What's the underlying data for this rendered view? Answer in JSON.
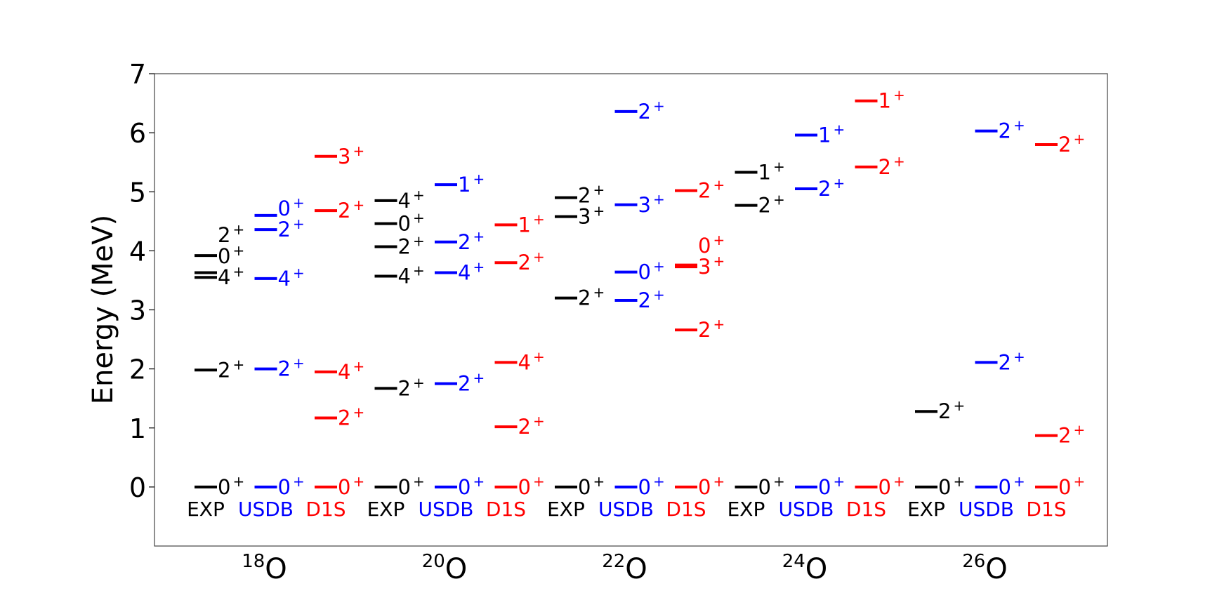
{
  "chart_data": {
    "type": "level-scheme",
    "ylabel": "Energy (MeV)",
    "ylim": [
      -1,
      7
    ],
    "yticks": [
      0,
      1,
      2,
      3,
      4,
      5,
      6,
      7
    ],
    "grid": false,
    "colors": {
      "EXP": "#000000",
      "USDB": "#0000ff",
      "D1S": "#ff0000"
    },
    "nuclei": [
      {
        "mass": "18",
        "symbol": "O",
        "columns": [
          {
            "label": "EXP",
            "levels": [
              {
                "e": 0.0,
                "jp": "0",
                "p": "+"
              },
              {
                "e": 1.98,
                "jp": "2",
                "p": "+"
              },
              {
                "e": 3.55,
                "jp": "4",
                "p": "+"
              },
              {
                "e": 3.63,
                "jp": "0",
                "p": "+"
              },
              {
                "e": 3.92,
                "jp": "2",
                "p": "+"
              }
            ]
          },
          {
            "label": "USDB",
            "levels": [
              {
                "e": 0.0,
                "jp": "0",
                "p": "+"
              },
              {
                "e": 2.0,
                "jp": "2",
                "p": "+"
              },
              {
                "e": 3.53,
                "jp": "4",
                "p": "+"
              },
              {
                "e": 4.36,
                "jp": "2",
                "p": "+"
              },
              {
                "e": 4.6,
                "jp": "0",
                "p": "+"
              }
            ]
          },
          {
            "label": "D1S",
            "levels": [
              {
                "e": 0.0,
                "jp": "0",
                "p": "+"
              },
              {
                "e": 1.17,
                "jp": "2",
                "p": "+"
              },
              {
                "e": 1.95,
                "jp": "4",
                "p": "+"
              },
              {
                "e": 4.68,
                "jp": "2",
                "p": "+"
              },
              {
                "e": 5.6,
                "jp": "3",
                "p": "+"
              }
            ]
          }
        ]
      },
      {
        "mass": "20",
        "symbol": "O",
        "columns": [
          {
            "label": "EXP",
            "levels": [
              {
                "e": 0.0,
                "jp": "0",
                "p": "+"
              },
              {
                "e": 1.67,
                "jp": "2",
                "p": "+"
              },
              {
                "e": 3.57,
                "jp": "4",
                "p": "+"
              },
              {
                "e": 4.07,
                "jp": "2",
                "p": "+"
              },
              {
                "e": 4.46,
                "jp": "0",
                "p": "+"
              },
              {
                "e": 4.85,
                "jp": "4",
                "p": "+"
              }
            ]
          },
          {
            "label": "USDB",
            "levels": [
              {
                "e": 0.0,
                "jp": "0",
                "p": "+"
              },
              {
                "e": 1.75,
                "jp": "2",
                "p": "+"
              },
              {
                "e": 3.63,
                "jp": "4",
                "p": "+"
              },
              {
                "e": 4.15,
                "jp": "2",
                "p": "+"
              },
              {
                "e": 5.12,
                "jp": "1",
                "p": "+"
              }
            ]
          },
          {
            "label": "D1S",
            "levels": [
              {
                "e": 0.0,
                "jp": "0",
                "p": "+"
              },
              {
                "e": 1.02,
                "jp": "2",
                "p": "+"
              },
              {
                "e": 2.11,
                "jp": "4",
                "p": "+"
              },
              {
                "e": 3.8,
                "jp": "2",
                "p": "+"
              },
              {
                "e": 4.44,
                "jp": "1",
                "p": "+"
              }
            ]
          }
        ]
      },
      {
        "mass": "22",
        "symbol": "O",
        "columns": [
          {
            "label": "EXP",
            "levels": [
              {
                "e": 0.0,
                "jp": "0",
                "p": "+"
              },
              {
                "e": 3.2,
                "jp": "2",
                "p": "+"
              },
              {
                "e": 4.58,
                "jp": "3",
                "p": "+"
              },
              {
                "e": 4.9,
                "jp": "2",
                "p": "+"
              }
            ]
          },
          {
            "label": "USDB",
            "levels": [
              {
                "e": 0.0,
                "jp": "0",
                "p": "+"
              },
              {
                "e": 3.16,
                "jp": "2",
                "p": "+"
              },
              {
                "e": 3.64,
                "jp": "0",
                "p": "+"
              },
              {
                "e": 4.78,
                "jp": "3",
                "p": "+"
              },
              {
                "e": 6.36,
                "jp": "2",
                "p": "+"
              }
            ]
          },
          {
            "label": "D1S",
            "levels": [
              {
                "e": 0.0,
                "jp": "0",
                "p": "+"
              },
              {
                "e": 2.66,
                "jp": "2",
                "p": "+"
              },
              {
                "e": 3.73,
                "jp": "3",
                "p": "+"
              },
              {
                "e": 3.76,
                "jp": "0",
                "p": "+"
              },
              {
                "e": 5.02,
                "jp": "2",
                "p": "+"
              }
            ]
          }
        ]
      },
      {
        "mass": "24",
        "symbol": "O",
        "columns": [
          {
            "label": "EXP",
            "levels": [
              {
                "e": 0.0,
                "jp": "0",
                "p": "+"
              },
              {
                "e": 4.77,
                "jp": "2",
                "p": "+"
              },
              {
                "e": 5.33,
                "jp": "1",
                "p": "+"
              }
            ]
          },
          {
            "label": "USDB",
            "levels": [
              {
                "e": 0.0,
                "jp": "0",
                "p": "+"
              },
              {
                "e": 5.05,
                "jp": "2",
                "p": "+"
              },
              {
                "e": 5.96,
                "jp": "1",
                "p": "+"
              }
            ]
          },
          {
            "label": "D1S",
            "levels": [
              {
                "e": 0.0,
                "jp": "0",
                "p": "+"
              },
              {
                "e": 5.42,
                "jp": "2",
                "p": "+"
              },
              {
                "e": 6.54,
                "jp": "1",
                "p": "+"
              }
            ]
          }
        ]
      },
      {
        "mass": "26",
        "symbol": "O",
        "columns": [
          {
            "label": "EXP",
            "levels": [
              {
                "e": 0.0,
                "jp": "0",
                "p": "+"
              },
              {
                "e": 1.28,
                "jp": "2",
                "p": "+"
              }
            ]
          },
          {
            "label": "USDB",
            "levels": [
              {
                "e": 0.0,
                "jp": "0",
                "p": "+"
              },
              {
                "e": 2.11,
                "jp": "2",
                "p": "+"
              },
              {
                "e": 6.03,
                "jp": "2",
                "p": "+"
              }
            ]
          },
          {
            "label": "D1S",
            "levels": [
              {
                "e": 0.0,
                "jp": "0",
                "p": "+"
              },
              {
                "e": 0.87,
                "jp": "2",
                "p": "+"
              },
              {
                "e": 5.8,
                "jp": "2",
                "p": "+"
              }
            ]
          }
        ]
      }
    ]
  }
}
